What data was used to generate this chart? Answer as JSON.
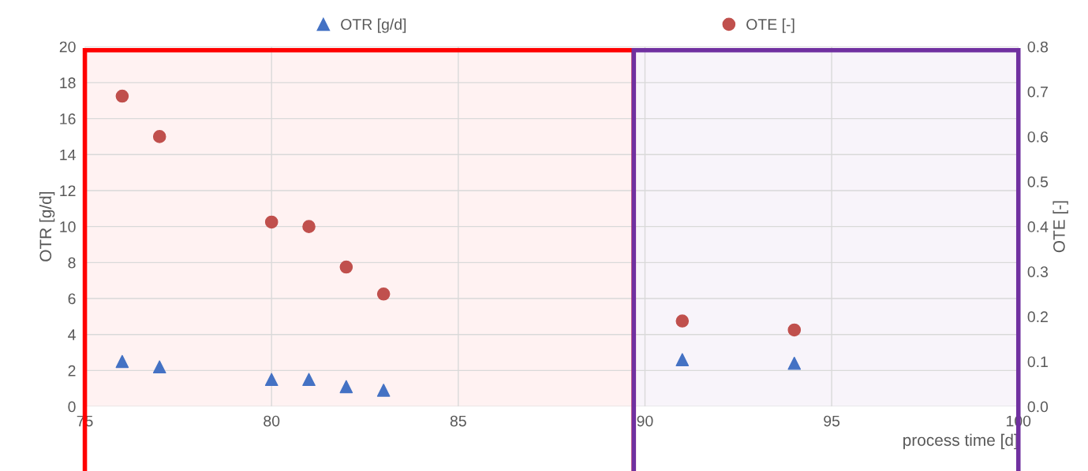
{
  "chart_data": {
    "type": "scatter",
    "xlabel": "process time [d]",
    "ylabel": "OTR [g/d]",
    "y2label": "OTE [-]",
    "x": [
      76,
      77,
      80,
      81,
      82,
      83,
      91,
      94
    ],
    "series": [
      {
        "name": "OTR [g/d]",
        "color": "#4472c4",
        "marker": "triangle",
        "values": [
          2.5,
          2.2,
          1.5,
          1.5,
          1.1,
          0.9,
          2.6,
          2.4
        ]
      },
      {
        "name": "OTE [-]",
        "color": "#c0504d",
        "marker": "circle",
        "axis": "y2",
        "values": [
          0.69,
          0.6,
          0.41,
          0.4,
          0.31,
          0.25,
          0.19,
          0.17
        ]
      }
    ],
    "xlim": [
      75,
      100
    ],
    "xticks": [
      75,
      80,
      85,
      90,
      95,
      100
    ],
    "ylim": [
      0,
      20
    ],
    "yticks": [
      0,
      2,
      4,
      6,
      8,
      10,
      12,
      14,
      16,
      18,
      20
    ],
    "y2lim": [
      0,
      0.8
    ],
    "y2ticks": [
      {
        "value": 0,
        "label": "0.0"
      },
      0.1,
      0.2,
      0.3,
      0.4,
      0.5,
      0.6,
      0.7,
      0.8
    ],
    "bands": [
      {
        "axis": "x",
        "from": 75,
        "to": 89.7,
        "color": "#ff0000"
      },
      {
        "axis": "x",
        "from": 89.7,
        "to": 100,
        "color": "#7030a0"
      }
    ],
    "grid": true,
    "legend": "top"
  }
}
